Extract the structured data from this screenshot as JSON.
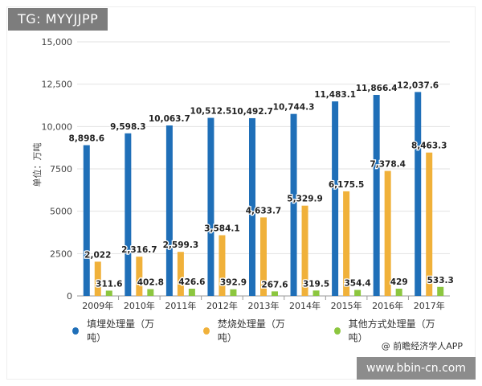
{
  "watermark_top": "TG: MYYJJPP",
  "watermark_bottom": "www.bbin-cn.com",
  "source": "@ 前瞻经济学人APP",
  "chart_data": {
    "type": "bar",
    "ylabel": "单位：万吨",
    "ylim": [
      0,
      15000
    ],
    "yticks": [
      "0",
      "2500",
      "5000",
      "7500",
      "10,000",
      "12,500",
      "15,000"
    ],
    "categories": [
      "2009年",
      "2010年",
      "2011年",
      "2012年",
      "2013年",
      "2014年",
      "2015年",
      "2016年",
      "2017年"
    ],
    "legend_position": "bottom",
    "series": [
      {
        "name": "填埋处理量（万吨）",
        "color": "#1f6fb8",
        "values": [
          8898.6,
          9598.3,
          10063.7,
          10512.5,
          10492.7,
          10744.3,
          11483.1,
          11866.4,
          12037.6
        ],
        "labels": [
          "8,898.6",
          "9,598.3",
          "10,063.7",
          "10,512.5",
          "10,492.7",
          "10,744.3",
          "11,483.1",
          "11,866.4",
          "12,037.6"
        ]
      },
      {
        "name": "焚烧处理量（万吨）",
        "color": "#f0b13a",
        "values": [
          2022,
          2316.7,
          2599.3,
          3584.1,
          4633.7,
          5329.9,
          6175.5,
          7378.4,
          8463.3
        ],
        "labels": [
          "2,022",
          "2,316.7",
          "2,599.3",
          "3,584.1",
          "4,633.7",
          "5,329.9",
          "6,175.5",
          "7,378.4",
          "8,463.3"
        ]
      },
      {
        "name": "其他方式处理量（万吨）",
        "color": "#8cc63f",
        "values": [
          311.6,
          402.8,
          426.6,
          392.9,
          267.6,
          319.5,
          354.4,
          429,
          533.3
        ],
        "labels": [
          "311.6",
          "402.8",
          "426.6",
          "392.9",
          "267.6",
          "319.5",
          "354.4",
          "429",
          "533.3"
        ]
      }
    ]
  }
}
